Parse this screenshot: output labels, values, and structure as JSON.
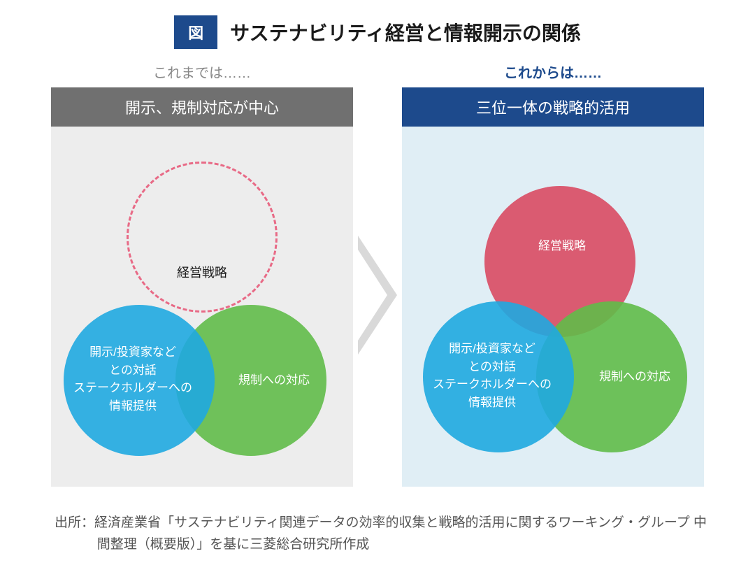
{
  "colors": {
    "badge_bg": "#1d4a8c",
    "title_text": "#1a1a1a",
    "left_sublabel": "#888888",
    "right_sublabel": "#1d4a8c",
    "left_header_bg": "#707070",
    "right_header_bg": "#1d4a8c",
    "left_body_bg": "#ededed",
    "right_body_bg": "#e0eef5",
    "arrow_fill": "#d9d9d9",
    "circle_blue": "#1fa8e0",
    "circle_green": "#61bb49",
    "circle_red": "#d94a63",
    "dashed_red": "#e86a86",
    "source_text": "#555555"
  },
  "layout": {
    "circle_diameter": 216,
    "dashed_diameter": 216,
    "circle_opacity": 0.9
  },
  "title": {
    "badge": "図",
    "text": "サステナビリティ経営と情報開示の関係"
  },
  "left_panel": {
    "sublabel": "これまでは……",
    "header": "開示、規制対応が中心",
    "top_label": "経営戦略",
    "blue_label": "開示/投資家など\nとの対話\nステークホルダーへの\n情報提供",
    "green_label": "規制への対応"
  },
  "right_panel": {
    "sublabel": "これからは……",
    "header": "三位一体の戦略的活用",
    "red_label": "経営戦略",
    "blue_label": "開示/投資家など\nとの対話\nステークホルダーへの\n情報提供",
    "green_label": "規制への対応"
  },
  "source": "出所：経済産業省「サステナビリティ関連データの効率的収集と戦略的活用に関するワーキング・グループ 中間整理（概要版）」を基に三菱総合研究所作成"
}
